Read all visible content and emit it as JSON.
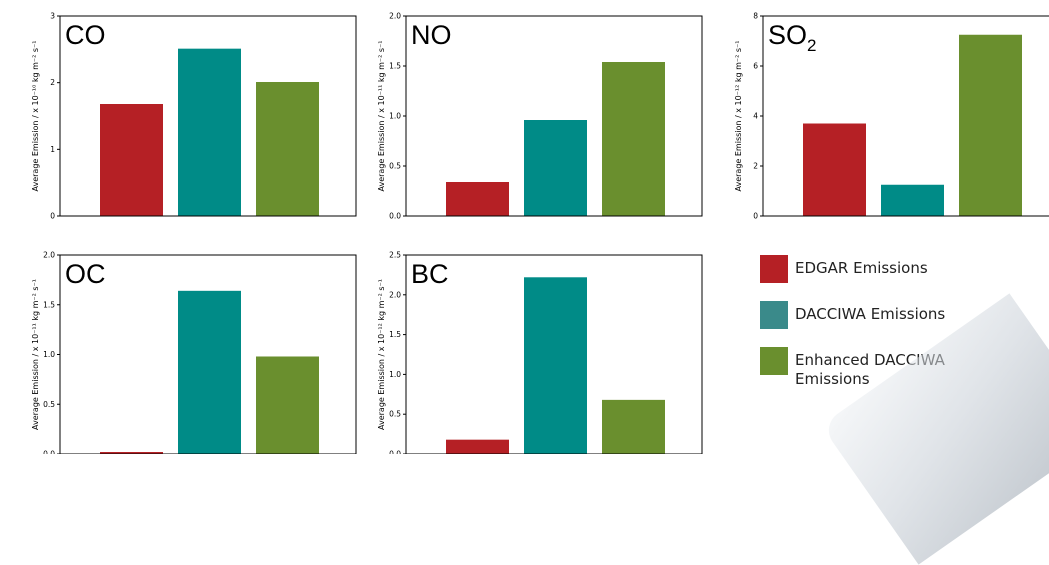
{
  "chart_data": [
    {
      "type": "bar",
      "title": "CO",
      "title_sub": "",
      "ylabel": "Average Emission / x 10⁻¹⁰ kg m⁻² s⁻¹",
      "ylim": [
        0,
        3
      ],
      "yticks": [
        0,
        1,
        2,
        3
      ],
      "ytick_labels": [
        "0",
        "1",
        "2",
        "3"
      ],
      "categories": [
        "EDGAR Emissions",
        "DACCIWA Emissions",
        "Enhanced DACCIWA Emissions"
      ],
      "values": [
        1.68,
        2.51,
        2.01
      ]
    },
    {
      "type": "bar",
      "title": "NO",
      "title_sub": "",
      "ylabel": "Average Emission / x 10⁻¹¹ kg m⁻² s⁻¹",
      "ylim": [
        0,
        2.0
      ],
      "yticks": [
        0,
        0.5,
        1.0,
        1.5,
        2.0
      ],
      "ytick_labels": [
        "0.0",
        "0.5",
        "1.0",
        "1.5",
        "2.0"
      ],
      "categories": [
        "EDGAR Emissions",
        "DACCIWA Emissions",
        "Enhanced DACCIWA Emissions"
      ],
      "values": [
        0.34,
        0.96,
        1.54
      ]
    },
    {
      "type": "bar",
      "title": "SO",
      "title_sub": "2",
      "ylabel": "Average Emission / x 10⁻¹² kg m⁻² s⁻¹",
      "ylim": [
        0,
        8
      ],
      "yticks": [
        0,
        2,
        4,
        6,
        8
      ],
      "ytick_labels": [
        "0",
        "2",
        "4",
        "6",
        "8"
      ],
      "categories": [
        "EDGAR Emissions",
        "DACCIWA Emissions",
        "Enhanced DACCIWA Emissions"
      ],
      "values": [
        3.7,
        1.25,
        7.25
      ]
    },
    {
      "type": "bar",
      "title": "OC",
      "title_sub": "",
      "ylabel": "Average Emission / x 10⁻¹¹ kg m⁻² s⁻¹",
      "ylim": [
        0,
        2.0
      ],
      "yticks": [
        0,
        0.5,
        1.0,
        1.5,
        2.0
      ],
      "ytick_labels": [
        "0.0",
        "0.5",
        "1.0",
        "1.5",
        "2.0"
      ],
      "categories": [
        "EDGAR Emissions",
        "DACCIWA Emissions",
        "Enhanced DACCIWA Emissions"
      ],
      "values": [
        0.02,
        1.64,
        0.98
      ]
    },
    {
      "type": "bar",
      "title": "BC",
      "title_sub": "",
      "ylabel": "Average Emission / x 10⁻¹² kg m⁻² s⁻¹",
      "ylim": [
        0,
        2.5
      ],
      "yticks": [
        0,
        0.5,
        1.0,
        1.5,
        2.0,
        2.5
      ],
      "ytick_labels": [
        "0.0",
        "0.5",
        "1.0",
        "1.5",
        "2.0",
        "2.5"
      ],
      "categories": [
        "EDGAR Emissions",
        "DACCIWA Emissions",
        "Enhanced DACCIWA Emissions"
      ],
      "values": [
        0.18,
        2.22,
        0.68
      ]
    }
  ],
  "colors": {
    "edgar": "#b52025",
    "dacciwa": "#008b87",
    "enhanced": "#6a8f2e",
    "dacciwa_legend": "#3a8a8a"
  },
  "legend": {
    "items": [
      {
        "label": "EDGAR Emissions",
        "color": "#b52025"
      },
      {
        "label": "DACCIWA Emissions",
        "color": "#3a8a8a"
      },
      {
        "label": "Enhanced DACCIWA Emissions",
        "color": "#6a8f2e"
      }
    ]
  }
}
